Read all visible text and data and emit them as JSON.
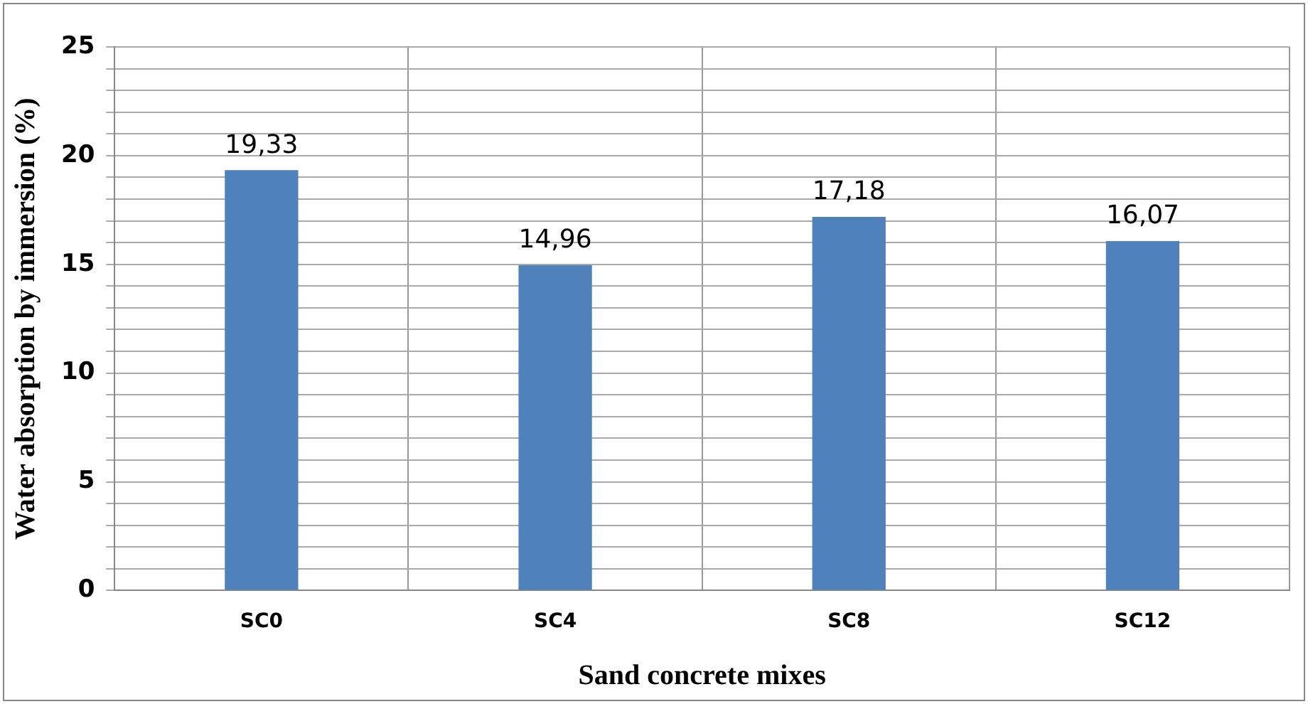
{
  "chart_data": {
    "type": "bar",
    "xlabel": "Sand concrete mixes",
    "ylabel": "Water absorption by immersion (%)",
    "categories": [
      "SC0",
      "SC4",
      "SC8",
      "SC12"
    ],
    "values": [
      19.33,
      14.96,
      17.18,
      16.07
    ],
    "value_labels": [
      "19,33",
      "14,96",
      "17,18",
      "16,07"
    ],
    "color": "#4f81bd",
    "ylim": [
      0,
      25
    ],
    "yticks": [
      0,
      {
        "value": 1,
        "label": null
      },
      {
        "value": 2,
        "label": null
      },
      {
        "value": 3,
        "label": null
      },
      {
        "value": 4,
        "label": null
      },
      5,
      {
        "value": 6,
        "label": null
      },
      {
        "value": 7,
        "label": null
      },
      {
        "value": 8,
        "label": null
      },
      {
        "value": 9,
        "label": null
      },
      10,
      {
        "value": 11,
        "label": null
      },
      {
        "value": 12,
        "label": null
      },
      {
        "value": 13,
        "label": null
      },
      {
        "value": 14,
        "label": null
      },
      15,
      {
        "value": 16,
        "label": null
      },
      {
        "value": 17,
        "label": null
      },
      {
        "value": 18,
        "label": null
      },
      {
        "value": 19,
        "label": null
      },
      20,
      {
        "value": 21,
        "label": null
      },
      {
        "value": 22,
        "label": null
      },
      {
        "value": 23,
        "label": null
      },
      {
        "value": 24,
        "label": null
      },
      25
    ],
    "grid": true
  }
}
